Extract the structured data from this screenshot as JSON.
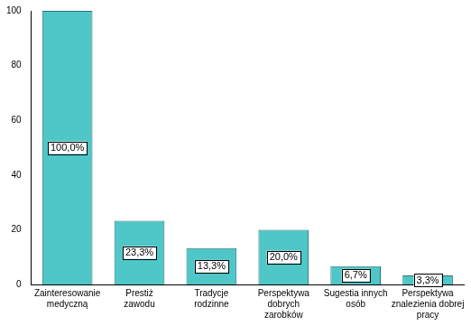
{
  "chart_data": {
    "type": "bar",
    "categories": [
      "Zainteresowanie\nmedyczną",
      "Prestiż\nzawodu",
      "Tradycje\nrodzinne",
      "Perspektywa\ndobrych\nzarobków",
      "Sugestia innych\nosób",
      "Perspektywa\nznalezienia dobrej\npracy"
    ],
    "values": [
      100.0,
      23.3,
      13.3,
      20.0,
      6.7,
      3.3
    ],
    "value_labels": [
      "100,0%",
      "23,3%",
      "13,3%",
      "20,0%",
      "6,7%",
      "3,3%"
    ],
    "data_labels": true,
    "color": "#4fc6c8",
    "ylim": [
      0,
      100
    ],
    "yticks": [
      0,
      20,
      40,
      60,
      80,
      100
    ],
    "grid": false
  }
}
